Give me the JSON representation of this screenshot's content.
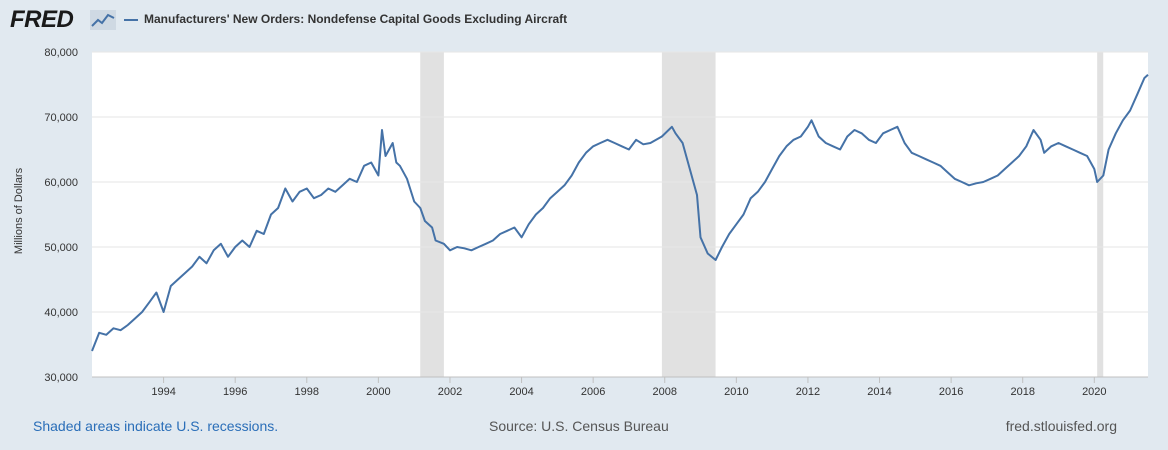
{
  "header": {
    "logo_text": "FRED",
    "logo_icon": "line-chart-icon",
    "legend_label": "Manufacturers' New Orders: Nondefense Capital Goods Excluding Aircraft",
    "series_color": "#4572a7"
  },
  "footer": {
    "recession_note": "Shaded areas indicate U.S. recessions.",
    "source": "Source: U.S. Census Bureau",
    "url": "fred.stlouisfed.org"
  },
  "chart_data": {
    "type": "line",
    "ylabel": "Millions of Dollars",
    "ylim": [
      30000,
      80000
    ],
    "xlim": [
      1992.0,
      2021.5
    ],
    "y_ticks": [
      30000,
      40000,
      50000,
      60000,
      70000,
      80000
    ],
    "y_tick_labels": [
      "30,000",
      "40,000",
      "50,000",
      "60,000",
      "70,000",
      "80,000"
    ],
    "x_ticks": [
      1994,
      1996,
      1998,
      2000,
      2002,
      2004,
      2006,
      2008,
      2010,
      2012,
      2014,
      2016,
      2018,
      2020
    ],
    "x_tick_labels": [
      "1994",
      "1996",
      "1998",
      "2000",
      "2002",
      "2004",
      "2006",
      "2008",
      "2010",
      "2012",
      "2014",
      "2016",
      "2018",
      "2020"
    ],
    "grid": "horizontal",
    "recessions": [
      [
        2001.17,
        2001.83
      ],
      [
        2007.92,
        2009.42
      ],
      [
        2020.08,
        2020.25
      ]
    ],
    "recession_color": "#e1e1e1",
    "series": [
      {
        "name": "Manufacturers' New Orders: Nondefense Capital Goods Excluding Aircraft",
        "color": "#4572a7",
        "x": [
          1992.0,
          1992.2,
          1992.4,
          1992.6,
          1992.8,
          1993.0,
          1993.2,
          1993.4,
          1993.6,
          1993.8,
          1994.0,
          1994.1,
          1994.2,
          1994.4,
          1994.6,
          1994.8,
          1995.0,
          1995.2,
          1995.4,
          1995.6,
          1995.8,
          1996.0,
          1996.2,
          1996.4,
          1996.6,
          1996.8,
          1997.0,
          1997.2,
          1997.4,
          1997.6,
          1997.8,
          1998.0,
          1998.2,
          1998.4,
          1998.6,
          1998.8,
          1999.0,
          1999.2,
          1999.4,
          1999.6,
          1999.8,
          2000.0,
          2000.1,
          2000.2,
          2000.4,
          2000.5,
          2000.6,
          2000.8,
          2001.0,
          2001.17,
          2001.3,
          2001.5,
          2001.6,
          2001.83,
          2002.0,
          2002.2,
          2002.4,
          2002.6,
          2002.8,
          2003.0,
          2003.2,
          2003.4,
          2003.6,
          2003.8,
          2004.0,
          2004.2,
          2004.4,
          2004.6,
          2004.8,
          2005.0,
          2005.2,
          2005.4,
          2005.6,
          2005.8,
          2006.0,
          2006.2,
          2006.4,
          2006.6,
          2006.8,
          2007.0,
          2007.2,
          2007.4,
          2007.6,
          2007.92,
          2008.2,
          2008.3,
          2008.5,
          2008.7,
          2008.9,
          2009.0,
          2009.2,
          2009.42,
          2009.6,
          2009.8,
          2010.0,
          2010.2,
          2010.4,
          2010.6,
          2010.8,
          2011.0,
          2011.2,
          2011.4,
          2011.6,
          2011.8,
          2012.0,
          2012.1,
          2012.3,
          2012.5,
          2012.7,
          2012.9,
          2013.1,
          2013.3,
          2013.5,
          2013.7,
          2013.9,
          2014.1,
          2014.3,
          2014.5,
          2014.7,
          2014.9,
          2015.1,
          2015.3,
          2015.5,
          2015.7,
          2015.9,
          2016.1,
          2016.3,
          2016.5,
          2016.7,
          2016.9,
          2017.1,
          2017.3,
          2017.5,
          2017.7,
          2017.9,
          2018.1,
          2018.3,
          2018.5,
          2018.6,
          2018.8,
          2019.0,
          2019.2,
          2019.4,
          2019.6,
          2019.8,
          2020.0,
          2020.08,
          2020.25,
          2020.4,
          2020.6,
          2020.8,
          2021.0,
          2021.2,
          2021.4,
          2021.5
        ],
        "values": [
          34000,
          36800,
          36500,
          37500,
          37200,
          38000,
          39000,
          40000,
          41500,
          43000,
          40000,
          42000,
          44000,
          45000,
          46000,
          47000,
          48500,
          47500,
          49500,
          50500,
          48500,
          50000,
          51000,
          50000,
          52500,
          52000,
          55000,
          56000,
          59000,
          57000,
          58500,
          59000,
          57500,
          58000,
          59000,
          58500,
          59500,
          60500,
          60000,
          62500,
          63000,
          61000,
          68000,
          64000,
          66000,
          63000,
          62500,
          60500,
          57000,
          56000,
          54000,
          53000,
          51000,
          50500,
          49500,
          50000,
          49800,
          49500,
          50000,
          50500,
          51000,
          52000,
          52500,
          53000,
          51500,
          53500,
          55000,
          56000,
          57500,
          58500,
          59500,
          61000,
          63000,
          64500,
          65500,
          66000,
          66500,
          66000,
          65500,
          65000,
          66500,
          65800,
          66000,
          67000,
          68500,
          67500,
          66000,
          62000,
          58000,
          51500,
          49000,
          48000,
          50000,
          52000,
          53500,
          55000,
          57500,
          58500,
          60000,
          62000,
          64000,
          65500,
          66500,
          67000,
          68500,
          69500,
          67000,
          66000,
          65500,
          65000,
          67000,
          68000,
          67500,
          66500,
          66000,
          67500,
          68000,
          68500,
          66000,
          64500,
          64000,
          63500,
          63000,
          62500,
          61500,
          60500,
          60000,
          59500,
          59800,
          60000,
          60500,
          61000,
          62000,
          63000,
          64000,
          65500,
          68000,
          66500,
          64500,
          65500,
          66000,
          65500,
          65000,
          64500,
          64000,
          62000,
          60000,
          61000,
          65000,
          67500,
          69500,
          71000,
          73500,
          76000,
          76500
        ]
      }
    ]
  }
}
